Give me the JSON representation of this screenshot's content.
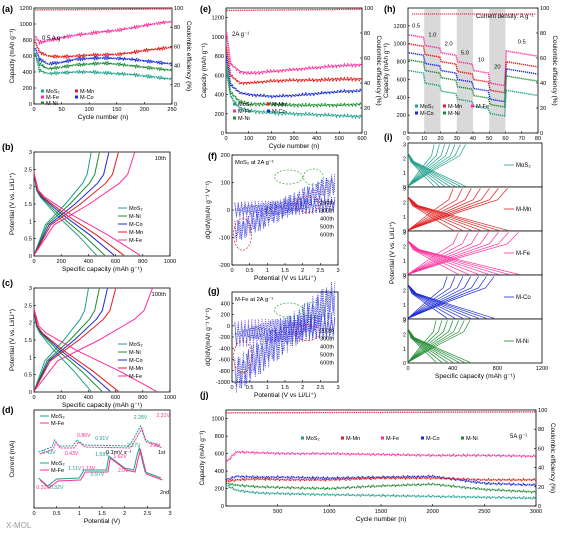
{
  "figure": {
    "panel_letters": [
      "(a)",
      "(b)",
      "(c)",
      "(d)",
      "(e)",
      "(f)",
      "(g)",
      "(h)",
      "(i)",
      "(j)"
    ],
    "watermark": "X-MOL",
    "colors": {
      "MoS2": "#1f9f8b",
      "M-Mn": "#e41a1c",
      "M-Fe": "#ff2d9b",
      "M-Co": "#1a2bd6",
      "M-Ni": "#1c8a2e",
      "ce": "#e04060"
    }
  },
  "chart_data": [
    {
      "id": "a",
      "type": "scatter",
      "xlabel": "Cycle number (n)",
      "ylabel": "Capacity (mAh g⁻¹)",
      "y2label": "Coulombic efficiency (%)",
      "xlim": [
        0,
        250
      ],
      "ylim": [
        0,
        1200
      ],
      "y2lim": [
        0,
        100
      ],
      "xticks": [
        0,
        50,
        100,
        150,
        200,
        250
      ],
      "yticks": [
        0,
        200,
        400,
        600,
        800,
        1000,
        1200
      ],
      "y2ticks": [
        0,
        20,
        40,
        60,
        80,
        100
      ],
      "annotation": "0.5 A g⁻¹",
      "legend": [
        "MoS₂",
        "M-Mn",
        "M-Fe",
        "M-Co",
        "M-Ni"
      ],
      "series": [
        {
          "name": "M-Fe",
          "x": [
            2,
            10,
            25,
            50,
            75,
            100,
            125,
            150,
            175,
            200,
            225,
            250
          ],
          "y": [
            850,
            770,
            790,
            830,
            860,
            880,
            905,
            920,
            950,
            980,
            1010,
            1030
          ]
        },
        {
          "name": "M-Mn",
          "x": [
            2,
            10,
            25,
            50,
            75,
            100,
            125,
            150,
            175,
            200,
            225,
            250
          ],
          "y": [
            780,
            650,
            600,
            590,
            600,
            610,
            615,
            620,
            640,
            670,
            690,
            710
          ]
        },
        {
          "name": "M-Co",
          "x": [
            2,
            10,
            25,
            50,
            75,
            100,
            125,
            150,
            175,
            200,
            225,
            250
          ],
          "y": [
            700,
            560,
            500,
            520,
            560,
            570,
            575,
            570,
            560,
            540,
            520,
            500
          ]
        },
        {
          "name": "M-Ni",
          "x": [
            2,
            10,
            25,
            50,
            75,
            100,
            125,
            150,
            175,
            200,
            225,
            250
          ],
          "y": [
            620,
            500,
            440,
            460,
            490,
            500,
            510,
            500,
            480,
            460,
            440,
            420
          ]
        },
        {
          "name": "MoS₂",
          "x": [
            2,
            10,
            25,
            50,
            75,
            100,
            125,
            150,
            175,
            200,
            225,
            250
          ],
          "y": [
            640,
            420,
            380,
            390,
            400,
            400,
            390,
            380,
            370,
            350,
            330,
            310
          ]
        }
      ],
      "ce": {
        "x": [
          2,
          250
        ],
        "y": [
          98,
          99
        ]
      }
    },
    {
      "id": "b",
      "type": "line",
      "xlabel": "Specific capacity (mAh g⁻¹)",
      "ylabel": "Potential (V vs. Li/Li⁺)",
      "xlim": [
        0,
        1000
      ],
      "ylim": [
        0,
        3
      ],
      "xticks": [
        0,
        200,
        400,
        600,
        800,
        1000
      ],
      "yticks": [
        0.0,
        0.5,
        1.0,
        1.5,
        2.0,
        2.5,
        3.0
      ],
      "annotation": "10th",
      "legend": [
        "MoS₂",
        "M-Ni",
        "M-Co",
        "M-Mn",
        "M-Fe"
      ],
      "series": [
        {
          "name": "MoS₂",
          "cap": [
            460,
            420
          ]
        },
        {
          "name": "M-Ni",
          "cap": [
            520,
            480
          ]
        },
        {
          "name": "M-Co",
          "cap": [
            590,
            550
          ]
        },
        {
          "name": "M-Mn",
          "cap": [
            660,
            620
          ]
        },
        {
          "name": "M-Fe",
          "cap": [
            780,
            740
          ]
        }
      ]
    },
    {
      "id": "c",
      "type": "line",
      "xlabel": "Specific capacity (mAh g⁻¹)",
      "ylabel": "Potential (V vs. Li/Li⁺)",
      "xlim": [
        0,
        1000
      ],
      "ylim": [
        0,
        3
      ],
      "xticks": [
        0,
        200,
        400,
        600,
        800,
        1000
      ],
      "yticks": [
        0.0,
        0.5,
        1.0,
        1.5,
        2.0,
        2.5,
        3.0
      ],
      "annotation": "100th",
      "legend": [
        "MoS₂",
        "M-Ni",
        "M-Co",
        "M-Mn",
        "M-Fe"
      ],
      "series": [
        {
          "name": "MoS₂",
          "cap": [
            420,
            400
          ]
        },
        {
          "name": "M-Ni",
          "cap": [
            500,
            480
          ]
        },
        {
          "name": "M-Co",
          "cap": [
            560,
            540
          ]
        },
        {
          "name": "M-Mn",
          "cap": [
            620,
            600
          ]
        },
        {
          "name": "M-Fe",
          "cap": [
            900,
            870
          ]
        }
      ]
    },
    {
      "id": "d",
      "type": "line",
      "xlabel": "Potential (V)",
      "ylabel": "Current (mA)",
      "xlim": [
        0,
        3
      ],
      "xticks": [
        0.0,
        0.5,
        1.0,
        1.5,
        2.0,
        2.5,
        3.0
      ],
      "scan_rate": "0.1mV s⁻¹",
      "cycle_labels": [
        "1st",
        "2nd"
      ],
      "legend_top": [
        "MoS₂",
        "M-Fe"
      ],
      "legend_bottom": [
        "MoS₂",
        "M-Fe"
      ],
      "peak_labels_top": [
        "2.28V",
        "2.31V",
        "0.91V",
        "0.86V",
        "0.43V",
        "0.43V"
      ],
      "peak_labels_bottom": [
        "2.27V",
        "2.3V",
        "1.59V",
        "1.62V",
        "1.11V",
        "1.13V",
        "0.97V",
        "0.31V",
        "0.32V",
        "2.0V"
      ]
    },
    {
      "id": "e",
      "type": "scatter",
      "xlabel": "Cycle number (n)",
      "ylabel": "Capacity (mAh g⁻¹)",
      "y2label": "Coulombic efficiency (%)",
      "xlim": [
        0,
        600
      ],
      "ylim": [
        0,
        1300
      ],
      "y2lim": [
        0,
        100
      ],
      "xticks": [
        0,
        100,
        200,
        300,
        400,
        500,
        600
      ],
      "yticks": [
        0,
        200,
        400,
        600,
        800,
        1000,
        1200
      ],
      "y2ticks": [
        0,
        20,
        40,
        60,
        80,
        100
      ],
      "annotation": "2A g⁻¹",
      "legend": [
        "MoS₂",
        "M-Mn",
        "M-Fe",
        "M-Co",
        "M-Ni"
      ],
      "series": [
        {
          "name": "M-Fe",
          "x": [
            2,
            20,
            60,
            100,
            200,
            300,
            400,
            500,
            600
          ],
          "y": [
            1050,
            720,
            640,
            620,
            640,
            660,
            680,
            700,
            710
          ]
        },
        {
          "name": "M-Mn",
          "x": [
            2,
            20,
            60,
            100,
            200,
            300,
            400,
            500,
            600
          ],
          "y": [
            900,
            600,
            520,
            520,
            540,
            550,
            550,
            560,
            560
          ]
        },
        {
          "name": "M-Co",
          "x": [
            2,
            20,
            60,
            100,
            200,
            300,
            400,
            500,
            600
          ],
          "y": [
            800,
            500,
            420,
            400,
            380,
            390,
            410,
            430,
            440
          ]
        },
        {
          "name": "M-Ni",
          "x": [
            2,
            20,
            60,
            100,
            200,
            300,
            400,
            500,
            600
          ],
          "y": [
            700,
            420,
            330,
            300,
            300,
            290,
            290,
            290,
            300
          ]
        },
        {
          "name": "MoS₂",
          "x": [
            2,
            20,
            60,
            100,
            200,
            300,
            400,
            500,
            600
          ],
          "y": [
            650,
            380,
            260,
            230,
            210,
            200,
            190,
            180,
            170
          ]
        }
      ],
      "ce": {
        "x": [
          2,
          600
        ],
        "y": [
          98,
          99
        ]
      }
    },
    {
      "id": "f",
      "type": "scatter",
      "xlabel": "Potential (V vs Li/Li⁺)",
      "ylabel": "dQ/dV(mAh g⁻¹ V⁻¹)",
      "xlim": [
        0,
        3
      ],
      "ylim": [
        -200,
        200
      ],
      "xticks": [
        0.0,
        0.5,
        1.0,
        1.5,
        2.0,
        2.5,
        3.0
      ],
      "yticks": [
        -200,
        -100,
        0,
        100,
        200
      ],
      "annotation": "MoS₂ at 2A g⁻¹",
      "legend": [
        "200th",
        "300th",
        "400th",
        "500th",
        "600th"
      ]
    },
    {
      "id": "g",
      "type": "scatter",
      "xlabel": "Potential (V vs Li/Li⁺)",
      "ylabel": "dQ/dV(mAh g⁻¹ V⁻¹)",
      "xlim": [
        0,
        3
      ],
      "ylim": [
        -1000,
        600
      ],
      "xticks": [
        0.0,
        0.5,
        1.0,
        1.5,
        2.0,
        2.5,
        3.0
      ],
      "yticks": [
        -1000,
        -800,
        -600,
        -400,
        -200,
        0,
        200,
        400
      ],
      "annotation": "M-Fe at 2A g⁻¹",
      "legend": [
        "200th",
        "300th",
        "400th",
        "500th",
        "600th"
      ]
    },
    {
      "id": "h",
      "type": "scatter",
      "xlabel": "Cycle number (n)",
      "ylabel": "Capacity (mAh g⁻¹)",
      "y2label": "Coulombic efficiency (%)",
      "xlim": [
        0,
        80
      ],
      "ylim": [
        0,
        1400
      ],
      "y2lim": [
        0,
        100
      ],
      "xticks": [
        0,
        10,
        20,
        30,
        40,
        50,
        60,
        70,
        80
      ],
      "yticks": [
        0,
        200,
        400,
        600,
        800,
        1000,
        1200
      ],
      "y2ticks": [
        0,
        20,
        40,
        60,
        80,
        100
      ],
      "annotation": "Current density: A g⁻¹",
      "rates": [
        "0.5",
        "1.0",
        "2.0",
        "5.0",
        "10",
        "20",
        "0.5"
      ],
      "legend": [
        "MoS₂",
        "M-Mn",
        "M-Fe",
        "M-Co",
        "M-Ni"
      ],
      "series": [
        {
          "name": "M-Fe",
          "seg": [
            1100,
            980,
            900,
            800,
            700,
            560,
            920
          ]
        },
        {
          "name": "M-Mn",
          "seg": [
            1000,
            880,
            800,
            690,
            600,
            480,
            800
          ]
        },
        {
          "name": "M-Co",
          "seg": [
            900,
            780,
            700,
            600,
            500,
            380,
            720
          ]
        },
        {
          "name": "M-Ni",
          "seg": [
            820,
            700,
            620,
            520,
            420,
            320,
            640
          ]
        },
        {
          "name": "MoS₂",
          "seg": [
            700,
            560,
            470,
            380,
            300,
            220,
            480
          ]
        }
      ]
    },
    {
      "id": "i",
      "type": "line",
      "xlabel": "Specific capacity (mAh g⁻¹)",
      "ylabel": "Potential (V vs. Li/Li⁺)",
      "xlim": [
        0,
        1200
      ],
      "xticks": [
        0,
        400,
        800,
        1200
      ],
      "yticks": [
        0,
        1,
        2,
        3
      ],
      "legend": [
        "MoS₂",
        "M-Mn",
        "M-Fe",
        "M-Co",
        "M-Ni"
      ]
    },
    {
      "id": "j",
      "type": "scatter",
      "xlabel": "Cycle number (n)",
      "ylabel": "Capacity (mAh g⁻¹)",
      "y2label": "Coulombic efficiency (%)",
      "xlim": [
        0,
        3000
      ],
      "ylim": [
        0,
        1100
      ],
      "y2lim": [
        0,
        100
      ],
      "xticks": [
        500,
        1000,
        1500,
        2000,
        2500,
        3000
      ],
      "yticks": [
        0,
        200,
        400,
        600,
        800,
        1000
      ],
      "y2ticks": [
        0,
        20,
        40,
        60,
        80,
        100
      ],
      "annotation": "5A g⁻¹",
      "legend": [
        "MoS₂",
        "M-Mn",
        "M-Fe",
        "M-Co",
        "M-Ni"
      ],
      "series": [
        {
          "name": "M-Fe",
          "x": [
            0,
            100,
            300,
            600,
            1000,
            1500,
            2000,
            2500,
            3000
          ],
          "y": [
            500,
            620,
            610,
            600,
            600,
            590,
            580,
            580,
            570
          ]
        },
        {
          "name": "M-Co",
          "x": [
            0,
            100,
            300,
            600,
            1000,
            1500,
            2000,
            2500,
            3000
          ],
          "y": [
            300,
            340,
            330,
            330,
            320,
            330,
            340,
            260,
            240
          ]
        },
        {
          "name": "M-Mn",
          "x": [
            0,
            100,
            300,
            600,
            1000,
            1500,
            2000,
            2500,
            3000
          ],
          "y": [
            280,
            300,
            310,
            300,
            300,
            320,
            320,
            300,
            300
          ]
        },
        {
          "name": "M-Ni",
          "x": [
            0,
            100,
            300,
            600,
            1000,
            1500,
            2000,
            2500,
            3000
          ],
          "y": [
            260,
            240,
            220,
            210,
            200,
            230,
            250,
            190,
            160
          ]
        },
        {
          "name": "MoS₂",
          "x": [
            0,
            100,
            300,
            600,
            1000,
            1500,
            2000,
            2500,
            3000
          ],
          "y": [
            240,
            180,
            150,
            140,
            130,
            120,
            110,
            100,
            90
          ]
        }
      ],
      "ce": {
        "x": [
          0,
          3000
        ],
        "y": [
          97,
          98
        ]
      }
    }
  ]
}
